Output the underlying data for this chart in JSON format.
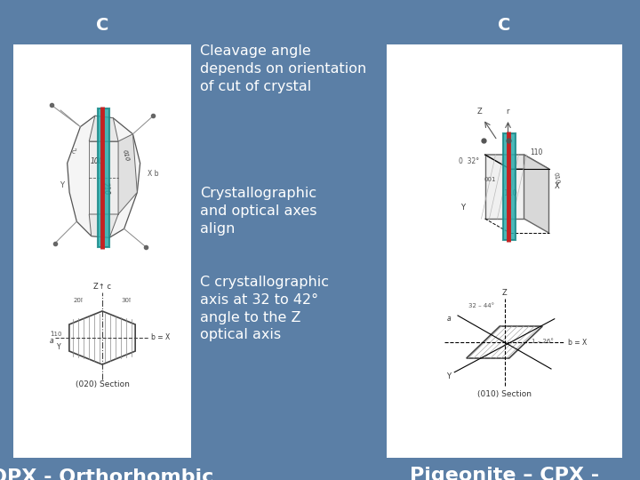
{
  "background_color": "#5b7fa6",
  "title_left": "C",
  "title_right": "C",
  "text1": "Cleavage angle\ndepends on orientation\nof cut of crystal",
  "text2": "Crystallographic\nand optical axes\nalign",
  "text3": "C crystallographic\naxis at 32 to 42°\nangle to the Z\noptical axis",
  "label_left": "OPX - Orthorhombic",
  "label_right": "Pigeonite – CPX -\nMonoclinic",
  "text_color": "#ffffff",
  "label_color": "#ffffff",
  "cyan_color": "#2aacac",
  "red_color": "#c42222",
  "font_size_title": 14,
  "font_size_text": 11.5,
  "font_size_label": 16,
  "figw": 7.2,
  "figh": 5.4
}
